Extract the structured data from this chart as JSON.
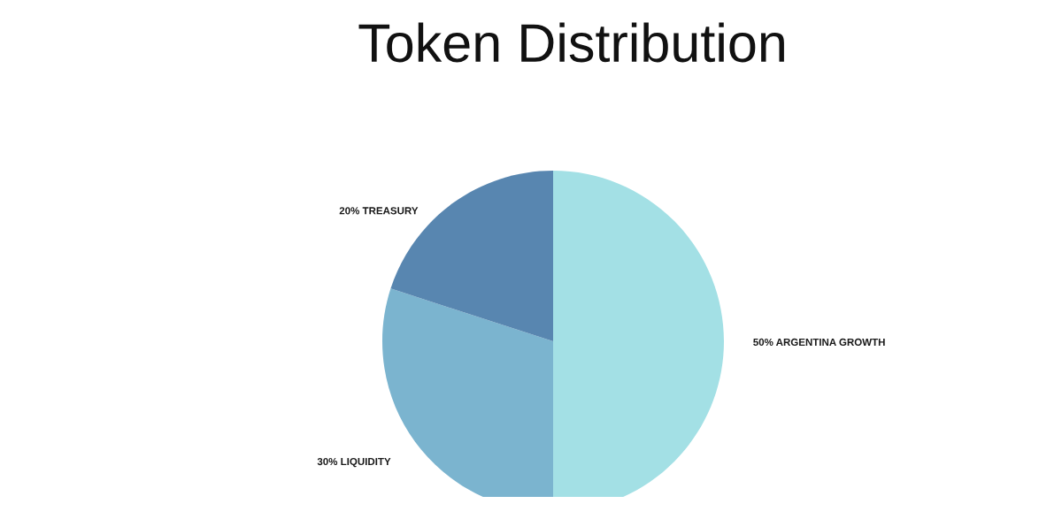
{
  "chart_data": {
    "type": "pie",
    "title": "Token Distribution",
    "categories": [
      "ARGENTINA GROWTH",
      "LIQUIDITY",
      "TREASURY"
    ],
    "values": [
      50,
      30,
      20
    ],
    "colors": [
      "#a3e0e5",
      "#7bb4cf",
      "#5886b0"
    ],
    "value_labels": [
      "50%",
      "30%",
      "20%"
    ]
  }
}
